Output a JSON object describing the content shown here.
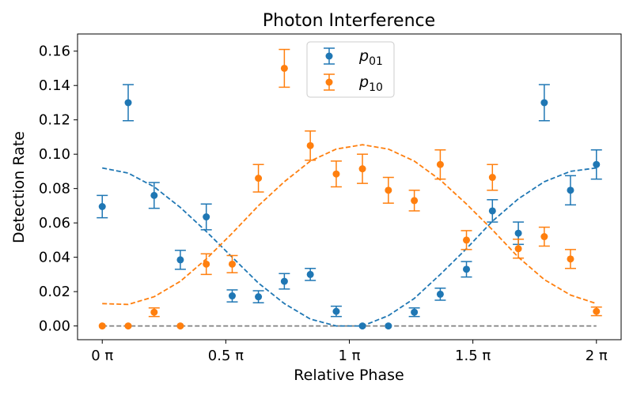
{
  "chart_data": {
    "type": "scatter",
    "title": "Photon Interference",
    "xlabel": "Relative Phase",
    "ylabel": "Detection Rate",
    "xlim": [
      -0.1,
      2.1
    ],
    "ylim": [
      -0.008,
      0.17
    ],
    "x_ticks": [
      {
        "value": 0,
        "label": "0 π"
      },
      {
        "value": 0.5,
        "label": "0.5 π"
      },
      {
        "value": 1,
        "label": "1 π"
      },
      {
        "value": 1.5,
        "label": "1.5 π"
      },
      {
        "value": 2,
        "label": "2 π"
      }
    ],
    "y_ticks": [
      {
        "value": 0.0,
        "label": "0.00"
      },
      {
        "value": 0.02,
        "label": "0.02"
      },
      {
        "value": 0.04,
        "label": "0.04"
      },
      {
        "value": 0.06,
        "label": "0.06"
      },
      {
        "value": 0.08,
        "label": "0.08"
      },
      {
        "value": 0.1,
        "label": "0.10"
      },
      {
        "value": 0.12,
        "label": "0.12"
      },
      {
        "value": 0.14,
        "label": "0.14"
      },
      {
        "value": 0.16,
        "label": "0.16"
      }
    ],
    "legend": {
      "placement": "top-center",
      "entries": [
        {
          "base": "p",
          "sub": "01",
          "color": "#1f77b4"
        },
        {
          "base": "p",
          "sub": "10",
          "color": "#ff7f0e"
        }
      ]
    },
    "x": [
      0,
      0.105,
      0.21,
      0.316,
      0.421,
      0.526,
      0.632,
      0.737,
      0.842,
      0.947,
      1.053,
      1.158,
      1.263,
      1.368,
      1.474,
      1.579,
      1.684,
      1.789,
      1.895,
      2.0
    ],
    "series": [
      {
        "name": "p01",
        "color": "#1f77b4",
        "values": [
          0.0695,
          0.13,
          0.076,
          0.0385,
          0.0635,
          0.0175,
          0.017,
          0.026,
          0.03,
          0.0085,
          0.0,
          0.0,
          0.008,
          0.0185,
          0.033,
          0.067,
          0.054,
          0.13,
          0.079,
          0.094
        ],
        "errors": [
          0.0065,
          0.0105,
          0.0075,
          0.0055,
          0.0075,
          0.0035,
          0.0035,
          0.0045,
          0.0035,
          0.003,
          0.0,
          0.0,
          0.0025,
          0.0035,
          0.0045,
          0.0065,
          0.0065,
          0.0105,
          0.0085,
          0.0085
        ]
      },
      {
        "name": "p10",
        "color": "#ff7f0e",
        "values": [
          0.0,
          0.0,
          0.008,
          0.0,
          0.036,
          0.036,
          0.086,
          0.15,
          0.105,
          0.0885,
          0.0915,
          0.079,
          0.073,
          0.094,
          0.05,
          0.0865,
          0.045,
          0.052,
          0.039,
          0.0085
        ],
        "errors": [
          0.0,
          0.0,
          0.0025,
          0.0,
          0.006,
          0.005,
          0.008,
          0.011,
          0.0085,
          0.0075,
          0.0085,
          0.0075,
          0.006,
          0.0085,
          0.0055,
          0.0075,
          0.0055,
          0.0055,
          0.0055,
          0.0025
        ]
      }
    ],
    "fits": [
      {
        "name": "p01 fit",
        "color": "#1f77b4",
        "x": [
          0,
          0.105,
          0.21,
          0.316,
          0.421,
          0.526,
          0.632,
          0.737,
          0.842,
          0.947,
          1.053,
          1.158,
          1.263,
          1.368,
          1.474,
          1.579,
          1.684,
          1.789,
          1.895,
          2.0
        ],
        "values": [
          0.092,
          0.089,
          0.081,
          0.069,
          0.055,
          0.04,
          0.025,
          0.013,
          0.004,
          0.0,
          0.0,
          0.006,
          0.016,
          0.03,
          0.045,
          0.061,
          0.074,
          0.084,
          0.09,
          0.092
        ]
      },
      {
        "name": "p10 fit",
        "color": "#ff7f0e",
        "x": [
          0,
          0.105,
          0.21,
          0.316,
          0.421,
          0.526,
          0.632,
          0.737,
          0.842,
          0.947,
          1.053,
          1.158,
          1.263,
          1.368,
          1.474,
          1.579,
          1.684,
          1.789,
          1.895,
          2.0
        ],
        "values": [
          0.013,
          0.0125,
          0.017,
          0.026,
          0.039,
          0.054,
          0.07,
          0.084,
          0.096,
          0.103,
          0.1055,
          0.103,
          0.096,
          0.085,
          0.071,
          0.056,
          0.04,
          0.027,
          0.018,
          0.013
        ]
      }
    ],
    "baseline": {
      "value": 0.0,
      "color": "#808080",
      "style": "dashed"
    }
  }
}
